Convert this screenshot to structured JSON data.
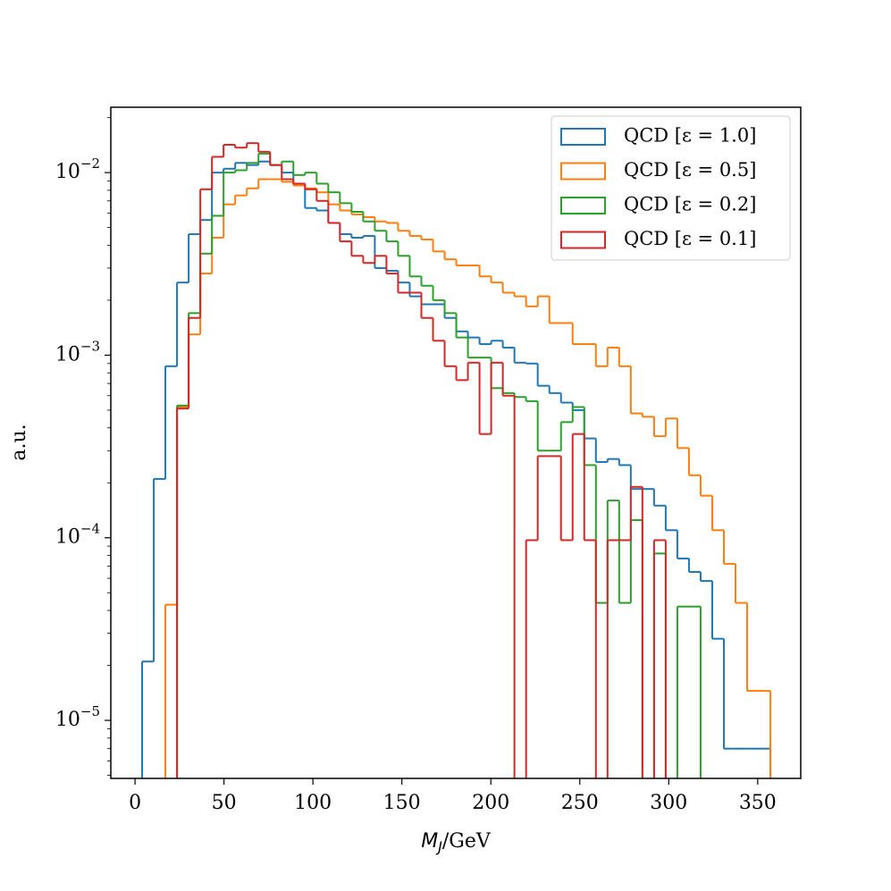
{
  "chart_data": {
    "type": "histogram",
    "xlabel": "MJ/GeV",
    "ylabel": "a.u.",
    "bins": [
      4.0,
      10.54,
      17.08,
      23.62,
      30.16,
      36.7,
      43.24,
      49.78,
      56.32,
      62.86,
      69.4,
      75.94,
      82.48,
      89.02,
      95.56,
      102.1,
      108.64,
      115.18,
      121.72,
      128.26,
      134.8,
      141.34,
      147.88,
      154.42,
      160.96,
      167.5,
      174.04,
      180.58,
      187.12,
      193.66,
      200.2,
      206.74,
      213.28,
      219.82,
      226.36,
      232.9,
      239.44,
      245.98,
      252.52,
      259.06,
      265.6,
      272.14,
      278.68,
      285.22,
      291.76,
      298.3,
      304.84,
      311.38,
      317.92,
      324.46,
      331.0,
      337.54,
      344.08,
      350.62,
      357.16
    ],
    "series": [
      {
        "name": "QCD [ε = 1.0]",
        "color": "#1f77b4",
        "values": [
          2.1e-05,
          0.00021,
          0.00087,
          0.0025,
          0.0046,
          0.0055,
          0.01,
          0.0105,
          0.0113,
          0.011,
          0.0115,
          0.011,
          0.01,
          0.0087,
          0.0064,
          0.0062,
          0.0053,
          0.0046,
          0.0044,
          0.0045,
          0.003,
          0.0029,
          0.0025,
          0.0021,
          0.0019,
          0.0019,
          0.0016,
          0.00135,
          0.00125,
          0.00115,
          0.0012,
          0.0011,
          0.00091,
          0.0009,
          0.00068,
          0.00062,
          0.00055,
          0.0005,
          0.00035,
          0.00026,
          0.00027,
          0.00025,
          0.000185,
          0.000185,
          0.00015,
          0.00011,
          7.7e-05,
          6.5e-05,
          5.8e-05,
          2.8e-05,
          7e-06,
          7e-06,
          7e-06,
          7e-06
        ]
      },
      {
        "name": "QCD [ε = 0.5]",
        "color": "#ff7f0e",
        "values": [
          0,
          0,
          4.3e-05,
          0.00052,
          0.0013,
          0.0028,
          0.0044,
          0.0067,
          0.0075,
          0.0082,
          0.0092,
          0.0092,
          0.0089,
          0.0085,
          0.0082,
          0.0078,
          0.0067,
          0.0062,
          0.0059,
          0.0057,
          0.0054,
          0.0053,
          0.0048,
          0.0045,
          0.0043,
          0.0037,
          0.00335,
          0.0031,
          0.0031,
          0.0027,
          0.0025,
          0.0022,
          0.0021,
          0.00185,
          0.0021,
          0.0015,
          0.0015,
          0.00115,
          0.00115,
          0.00087,
          0.0011,
          0.00087,
          0.00048,
          0.00046,
          0.00036,
          0.00045,
          0.00031,
          0.00022,
          0.00017,
          0.00011,
          7.2e-05,
          4.4e-05,
          1.45e-05,
          1.45e-05
        ]
      },
      {
        "name": "QCD [ε = 0.2]",
        "color": "#2ca02c",
        "values": [
          0,
          0,
          0,
          0.00053,
          0.0017,
          0.0036,
          0.0058,
          0.01,
          0.0103,
          0.0113,
          0.0127,
          0.011,
          0.0115,
          0.0097,
          0.01,
          0.0087,
          0.0078,
          0.0068,
          0.0061,
          0.0054,
          0.0048,
          0.0042,
          0.0035,
          0.0027,
          0.0024,
          0.002,
          0.0017,
          0.00125,
          0.00097,
          0.00097,
          0.00066,
          0.00062,
          0.00059,
          0.00056,
          0.0003,
          0.0003,
          0.00043,
          0.00052,
          0.00025,
          4.4e-05,
          0.00016,
          4.4e-05,
          0.000125,
          0,
          8.2e-05,
          0,
          4.2e-05,
          4.2e-05,
          0,
          0,
          0,
          0,
          0,
          0
        ]
      },
      {
        "name": "QCD [ε = 0.1]",
        "color": "#d62728",
        "values": [
          0,
          0,
          0,
          0.00051,
          0.0016,
          0.0081,
          0.0122,
          0.0142,
          0.0137,
          0.0145,
          0.013,
          0.011,
          0.0092,
          0.0087,
          0.0081,
          0.007,
          0.0053,
          0.0042,
          0.0035,
          0.0032,
          0.0035,
          0.0028,
          0.0022,
          0.0022,
          0.0016,
          0.0012,
          0.00087,
          0.00073,
          0.00091,
          0.00037,
          0.00091,
          0.0006,
          0,
          9.7e-05,
          0.00028,
          0.00028,
          9.7e-05,
          0.00037,
          9.7e-05,
          0,
          9.7e-05,
          9.7e-05,
          0.00019,
          0,
          9.7e-05,
          0,
          0,
          0,
          0,
          0,
          0,
          0,
          0,
          0
        ]
      }
    ],
    "xlim": [
      -13.6,
      374.2
    ],
    "xticks": [
      0,
      50,
      100,
      150,
      200,
      250,
      300,
      350
    ],
    "ylim": [
      4.81e-06,
      0.0228
    ],
    "log_y": true,
    "yticks": [
      {
        "value": 1e-05,
        "label": "10−5"
      },
      {
        "value": 0.0001,
        "label": "10−4"
      },
      {
        "value": 0.001,
        "label": "10−3"
      },
      {
        "value": 0.01,
        "label": "10−2"
      }
    ],
    "legend": "upper right",
    "grid": false
  }
}
